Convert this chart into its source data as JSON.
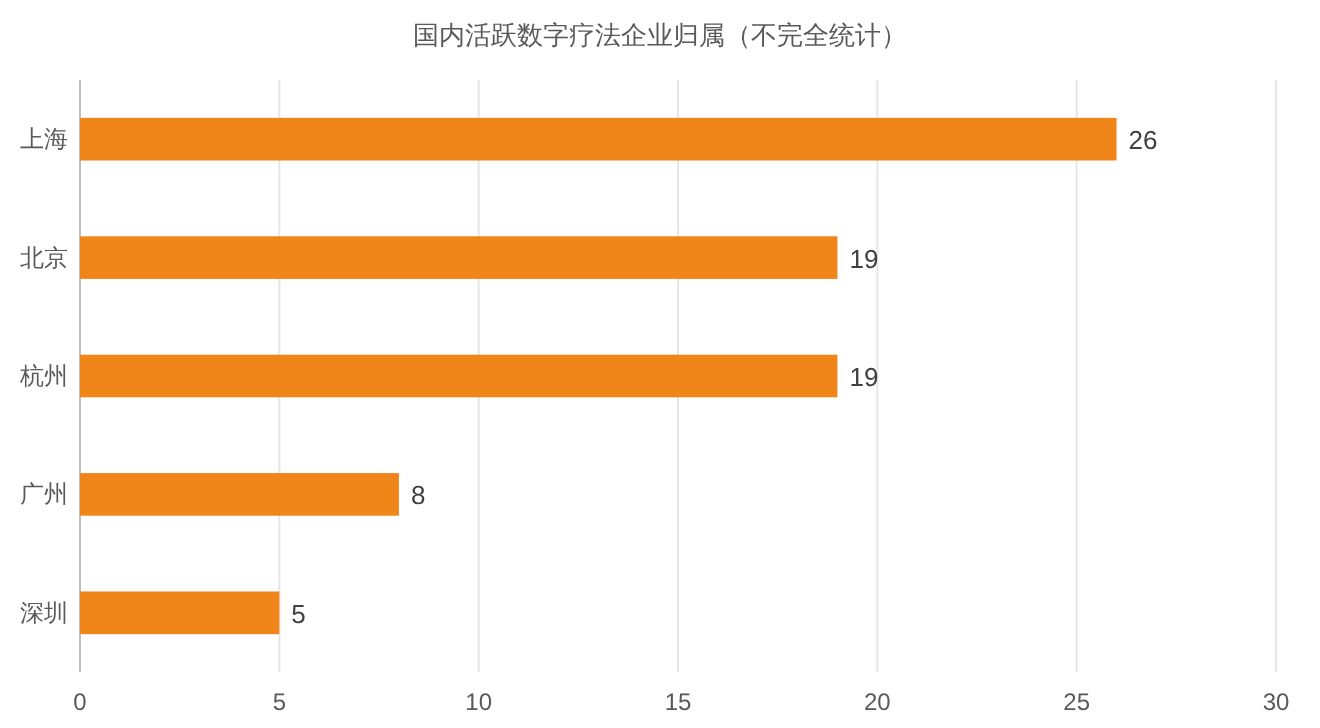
{
  "chart_data": {
    "type": "bar",
    "orientation": "horizontal",
    "title": "国内活跃数字疗法企业归属（不完全统计）",
    "categories": [
      "上海",
      "北京",
      "杭州",
      "广州",
      "深圳"
    ],
    "values": [
      26,
      19,
      19,
      8,
      5
    ],
    "color": "#f08519",
    "xlim": [
      0,
      30
    ],
    "xticks": [
      0,
      5,
      10,
      15,
      20,
      25,
      30
    ],
    "grid": "x",
    "data_labels": true
  }
}
